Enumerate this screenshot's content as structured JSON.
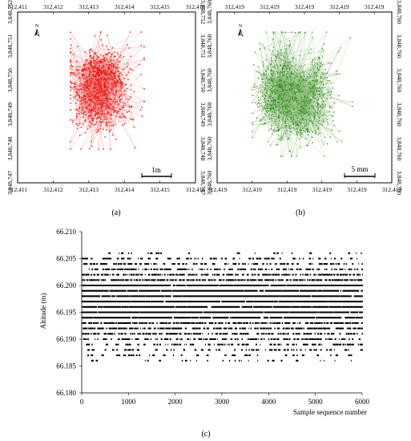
{
  "chart_data": [
    {
      "id": "a",
      "type": "scatter",
      "caption": "(a)",
      "x_ticks_top": [
        "312,411",
        "312,412",
        "312,413",
        "312,414",
        "312,415",
        "312,416"
      ],
      "x_ticks_bottom": [
        "312,411",
        "312,412",
        "312,413",
        "312,414",
        "312,415",
        "312,416"
      ],
      "y_ticks_left": [
        "3,848,752",
        "3,848,751",
        "3,848,750",
        "3,848,749",
        "3,848,748",
        "3,848,747"
      ],
      "y_ticks_right": [
        "3,848,752",
        "3,848,751",
        "3,848,750",
        "3,848,749",
        "3,848,748",
        "3,848,747"
      ],
      "scale_bar_label": "1m",
      "north_label": "N",
      "point_color": "#e8140e",
      "line_color": "#ef6a6a"
    },
    {
      "id": "b",
      "type": "scatter",
      "caption": "(b)",
      "x_ticks_top": [
        "312,419",
        "312,419",
        "312,419",
        "312,419",
        "312,419"
      ],
      "x_ticks_bottom": [
        "312,419",
        "312,419",
        "312,419",
        "312,419",
        "312,419",
        "312,419"
      ],
      "y_ticks_left": [
        "3,848,760",
        "3,848,760",
        "3,848,760",
        "3,848,760",
        "3,848,760",
        "3,848,760"
      ],
      "y_ticks_right": [
        "3,848,760",
        "3,848,760",
        "3,848,760",
        "3,848,760",
        "3,848,760",
        "3,848,760"
      ],
      "scale_bar_label": "5 mm",
      "north_label": "N",
      "point_color": "#2f8a1c",
      "line_color": "#7fb46d"
    },
    {
      "id": "c",
      "type": "scatter",
      "caption": "(c)",
      "xlabel": "Sample sequence number",
      "ylabel": "Altitude (m)",
      "xlim": [
        0,
        6000
      ],
      "ylim": [
        66.18,
        66.21
      ],
      "x_ticks": [
        "0",
        "1000",
        "2000",
        "3000",
        "4000",
        "5000",
        "6000"
      ],
      "y_ticks": [
        "66.210",
        "66.205",
        "66.200",
        "66.195",
        "66.190",
        "66.185",
        "66.180"
      ],
      "n_samples": 6000,
      "altitude_levels": [
        66.186,
        66.187,
        66.188,
        66.189,
        66.19,
        66.191,
        66.192,
        66.193,
        66.194,
        66.195,
        66.196,
        66.197,
        66.198,
        66.199,
        66.2,
        66.201,
        66.202,
        66.203,
        66.204,
        66.205,
        66.206
      ],
      "level_coverage": [
        0.08,
        0.15,
        0.22,
        0.3,
        0.45,
        0.55,
        0.7,
        0.8,
        0.88,
        0.95,
        0.97,
        0.98,
        0.97,
        0.95,
        0.9,
        0.8,
        0.68,
        0.5,
        0.38,
        0.22,
        0.06
      ],
      "point_color": "#000000"
    }
  ]
}
